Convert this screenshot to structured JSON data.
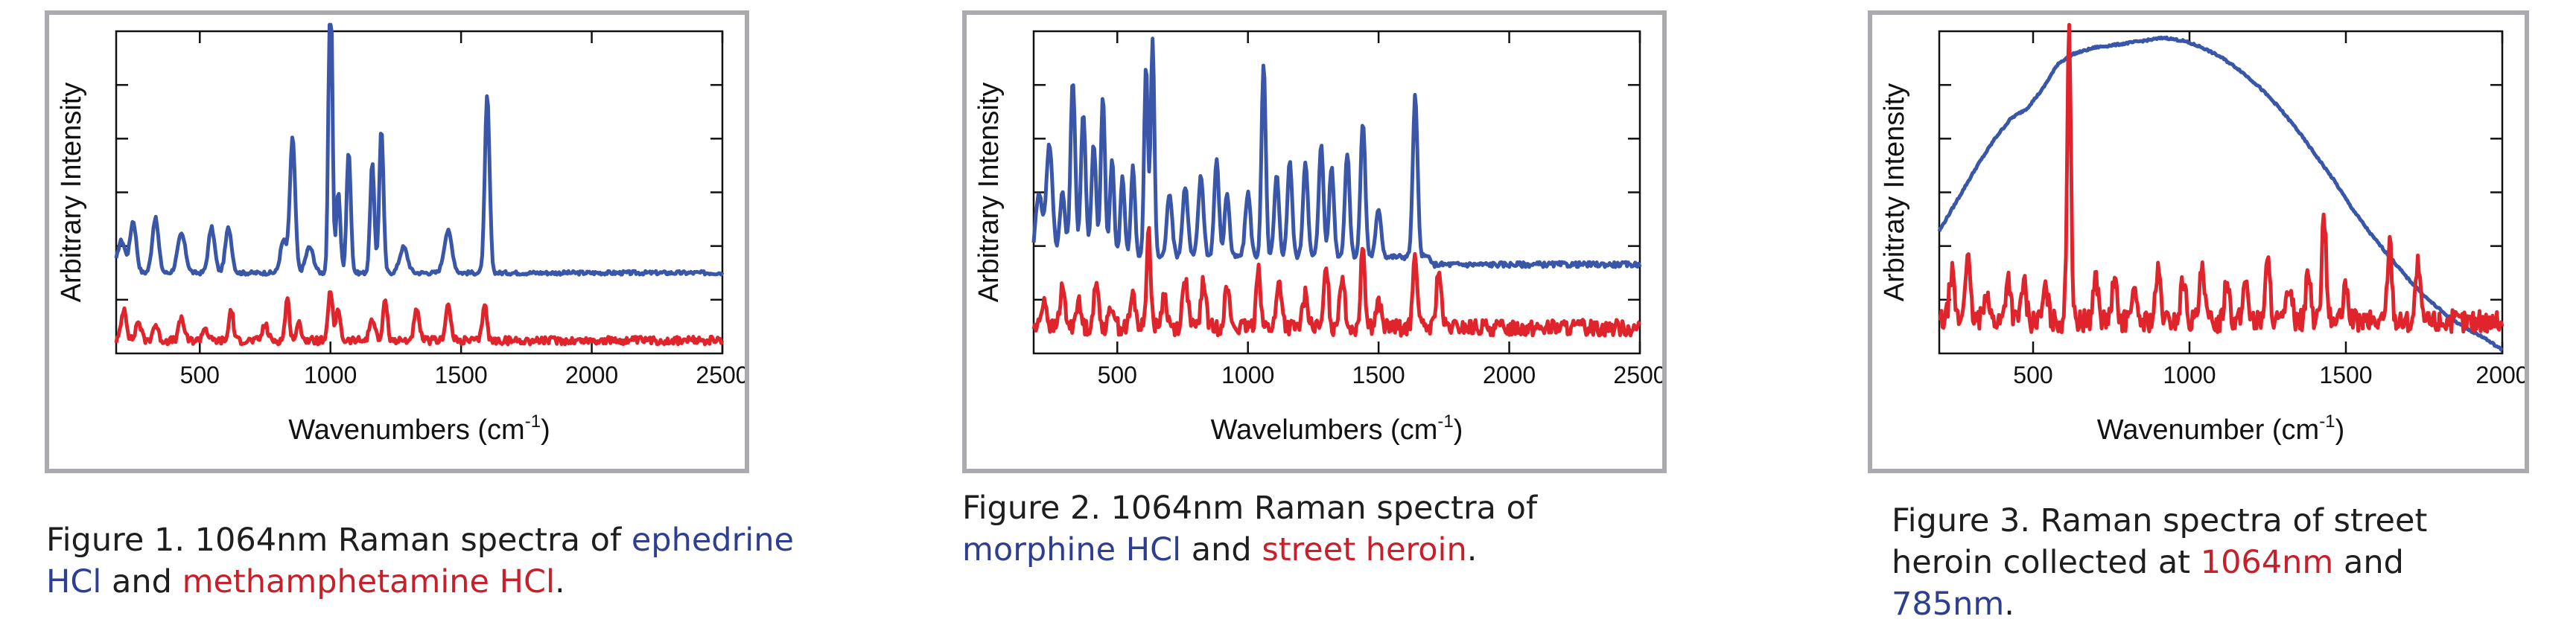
{
  "colors": {
    "blue": "#3a56a8",
    "red": "#e0242b",
    "frame": "#a9abb0"
  },
  "figures": [
    {
      "caption": {
        "prefix": "Figure 1. 1064nm Raman spectra of ",
        "blue_text": "ephedrine HCl",
        "mid": " and ",
        "red_text": "methamphetamine HCl",
        "suffix": "."
      }
    },
    {
      "caption": {
        "prefix": "Figure 2. 1064nm Raman spectra of ",
        "blue_text": "morphine HCl",
        "mid": " and ",
        "red_text": "street heroin",
        "suffix": "."
      }
    },
    {
      "caption": {
        "prefix": "Figure 3. Raman spectra of street heroin collected at ",
        "red_text": "1064nm",
        "mid": " and ",
        "blue_text": "785nm",
        "suffix": "."
      }
    }
  ],
  "chart_data": [
    {
      "type": "line",
      "title": "",
      "xlabel": "Wavenumbers (cm",
      "xlabel_sup": "-1",
      "xlabel_close": ")",
      "ylabel": "Arbitrary Intensity",
      "xlim": [
        180,
        2500
      ],
      "ylim": [
        0,
        1
      ],
      "xticks": [
        500,
        1000,
        1500,
        2000,
        2500
      ],
      "xtick_labels": [
        "500",
        "1000",
        "1500",
        "2000",
        "2500"
      ],
      "y_tick_count": 6,
      "grid": false,
      "series": [
        {
          "color": "blue",
          "baseline": 0.25,
          "peaks": [
            [
              200,
              0.1,
              15
            ],
            [
              245,
              0.16,
              12
            ],
            [
              330,
              0.17,
              12
            ],
            [
              430,
              0.12,
              15
            ],
            [
              545,
              0.14,
              12
            ],
            [
              610,
              0.14,
              12
            ],
            [
              820,
              0.1,
              12
            ],
            [
              855,
              0.42,
              10
            ],
            [
              920,
              0.08,
              15
            ],
            [
              1000,
              1.0,
              7
            ],
            [
              1030,
              0.25,
              8
            ],
            [
              1070,
              0.38,
              8
            ],
            [
              1160,
              0.34,
              8
            ],
            [
              1195,
              0.45,
              8
            ],
            [
              1280,
              0.08,
              15
            ],
            [
              1450,
              0.13,
              15
            ],
            [
              1600,
              0.55,
              9
            ]
          ],
          "noise": 0.006
        },
        {
          "color": "red",
          "baseline": 0.04,
          "peaks": [
            [
              210,
              0.1,
              10
            ],
            [
              265,
              0.06,
              10
            ],
            [
              330,
              0.05,
              10
            ],
            [
              430,
              0.07,
              10
            ],
            [
              520,
              0.04,
              10
            ],
            [
              620,
              0.1,
              8
            ],
            [
              750,
              0.05,
              10
            ],
            [
              835,
              0.13,
              8
            ],
            [
              880,
              0.05,
              10
            ],
            [
              1000,
              0.16,
              8
            ],
            [
              1030,
              0.1,
              8
            ],
            [
              1160,
              0.07,
              10
            ],
            [
              1210,
              0.13,
              8
            ],
            [
              1330,
              0.09,
              10
            ],
            [
              1450,
              0.11,
              10
            ],
            [
              1590,
              0.12,
              8
            ]
          ],
          "noise": 0.012
        }
      ]
    },
    {
      "type": "line",
      "title": "",
      "xlabel": "Wavelumbers (cm",
      "xlabel_sup": "-1",
      "xlabel_close": ")",
      "ylabel": "Arbitrary Intensity",
      "xlim": [
        180,
        2500
      ],
      "ylim": [
        0,
        1
      ],
      "xticks": [
        500,
        1000,
        1500,
        2000,
        2500
      ],
      "xtick_labels": [
        "500",
        "1000",
        "1500",
        "2000",
        "2500"
      ],
      "y_tick_count": 6,
      "grid": false,
      "series": [
        {
          "color": "blue",
          "baseline": 0.3,
          "peaks": [
            [
              200,
              0.2,
              12
            ],
            [
              240,
              0.35,
              12
            ],
            [
              290,
              0.2,
              10
            ],
            [
              330,
              0.55,
              9
            ],
            [
              370,
              0.45,
              9
            ],
            [
              410,
              0.35,
              9
            ],
            [
              445,
              0.5,
              8
            ],
            [
              480,
              0.3,
              8
            ],
            [
              520,
              0.25,
              8
            ],
            [
              560,
              0.28,
              8
            ],
            [
              610,
              0.6,
              7
            ],
            [
              635,
              0.68,
              7
            ],
            [
              700,
              0.2,
              10
            ],
            [
              760,
              0.22,
              10
            ],
            [
              820,
              0.25,
              10
            ],
            [
              880,
              0.3,
              9
            ],
            [
              920,
              0.2,
              9
            ],
            [
              1000,
              0.2,
              10
            ],
            [
              1060,
              0.6,
              8
            ],
            [
              1110,
              0.25,
              9
            ],
            [
              1160,
              0.3,
              9
            ],
            [
              1220,
              0.3,
              9
            ],
            [
              1280,
              0.35,
              9
            ],
            [
              1320,
              0.28,
              9
            ],
            [
              1380,
              0.32,
              9
            ],
            [
              1440,
              0.42,
              9
            ],
            [
              1500,
              0.15,
              10
            ],
            [
              1640,
              0.5,
              9
            ]
          ],
          "noise": 0.008,
          "tail_drop": 0.06
        },
        {
          "color": "red",
          "baseline": 0.08,
          "peaks": [
            [
              220,
              0.09,
              10
            ],
            [
              290,
              0.12,
              10
            ],
            [
              350,
              0.08,
              10
            ],
            [
              420,
              0.13,
              10
            ],
            [
              480,
              0.07,
              10
            ],
            [
              560,
              0.1,
              10
            ],
            [
              620,
              0.3,
              8
            ],
            [
              680,
              0.1,
              10
            ],
            [
              760,
              0.15,
              10
            ],
            [
              830,
              0.14,
              10
            ],
            [
              920,
              0.12,
              10
            ],
            [
              1040,
              0.2,
              8
            ],
            [
              1120,
              0.14,
              10
            ],
            [
              1220,
              0.1,
              10
            ],
            [
              1300,
              0.2,
              8
            ],
            [
              1360,
              0.16,
              10
            ],
            [
              1440,
              0.26,
              8
            ],
            [
              1500,
              0.08,
              10
            ],
            [
              1640,
              0.24,
              8
            ],
            [
              1730,
              0.18,
              9
            ]
          ],
          "noise": 0.025
        }
      ]
    },
    {
      "type": "line",
      "title": "",
      "xlabel": "Wavenumber (cm",
      "xlabel_sup": "-1",
      "xlabel_close": ")",
      "ylabel": "Arbitraty Intensity",
      "xlim": [
        200,
        2000
      ],
      "ylim": [
        0,
        1
      ],
      "xticks": [
        500,
        1000,
        1500,
        2000
      ],
      "xtick_labels": [
        "500",
        "1000",
        "1500",
        "2000"
      ],
      "y_tick_count": 6,
      "grid": false,
      "series": [
        {
          "color": "blue",
          "broad": true,
          "points": [
            [
              200,
              0.38
            ],
            [
              260,
              0.48
            ],
            [
              320,
              0.58
            ],
            [
              380,
              0.67
            ],
            [
              430,
              0.73
            ],
            [
              480,
              0.76
            ],
            [
              530,
              0.82
            ],
            [
              580,
              0.9
            ],
            [
              630,
              0.93
            ],
            [
              700,
              0.95
            ],
            [
              780,
              0.96
            ],
            [
              850,
              0.97
            ],
            [
              920,
              0.98
            ],
            [
              980,
              0.97
            ],
            [
              1040,
              0.95
            ],
            [
              1100,
              0.92
            ],
            [
              1160,
              0.88
            ],
            [
              1220,
              0.83
            ],
            [
              1280,
              0.77
            ],
            [
              1340,
              0.7
            ],
            [
              1400,
              0.62
            ],
            [
              1460,
              0.54
            ],
            [
              1520,
              0.45
            ],
            [
              1580,
              0.37
            ],
            [
              1640,
              0.3
            ],
            [
              1700,
              0.23
            ],
            [
              1760,
              0.17
            ],
            [
              1820,
              0.12
            ],
            [
              1880,
              0.08
            ],
            [
              1940,
              0.05
            ],
            [
              2000,
              0.01
            ]
          ],
          "noise": 0.003
        },
        {
          "color": "red",
          "baseline": 0.1,
          "peaks": [
            [
              240,
              0.15,
              8
            ],
            [
              290,
              0.2,
              8
            ],
            [
              350,
              0.1,
              8
            ],
            [
              420,
              0.14,
              8
            ],
            [
              470,
              0.12,
              8
            ],
            [
              540,
              0.1,
              8
            ],
            [
              615,
              0.93,
              6
            ],
            [
              700,
              0.14,
              8
            ],
            [
              760,
              0.12,
              8
            ],
            [
              820,
              0.1,
              8
            ],
            [
              900,
              0.15,
              8
            ],
            [
              980,
              0.13,
              8
            ],
            [
              1040,
              0.15,
              8
            ],
            [
              1120,
              0.14,
              8
            ],
            [
              1180,
              0.13,
              8
            ],
            [
              1250,
              0.18,
              8
            ],
            [
              1320,
              0.12,
              8
            ],
            [
              1380,
              0.15,
              8
            ],
            [
              1430,
              0.33,
              7
            ],
            [
              1500,
              0.1,
              8
            ],
            [
              1640,
              0.25,
              7
            ],
            [
              1730,
              0.18,
              7
            ]
          ],
          "noise": 0.035
        }
      ]
    }
  ]
}
